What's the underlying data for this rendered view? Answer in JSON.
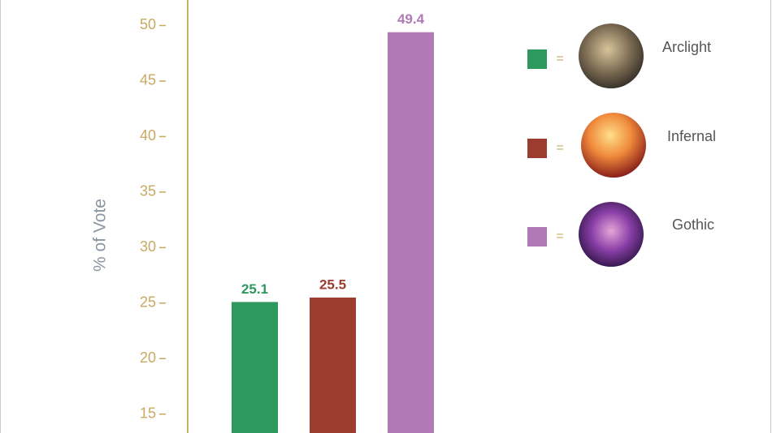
{
  "chart_data": {
    "type": "bar",
    "y_label": "% of Vote",
    "categories": [
      "Arclight",
      "Infernal",
      "Gothic"
    ],
    "values": [
      25.1,
      25.5,
      49.4
    ],
    "colors": [
      "#2e995c",
      "#9c3b30",
      "#b07ab6"
    ],
    "ylim": [
      13.3,
      52.3
    ],
    "yticks": [
      15,
      20,
      25,
      30,
      35,
      40,
      45,
      50
    ],
    "legend_separator": "=",
    "legend": "right"
  }
}
